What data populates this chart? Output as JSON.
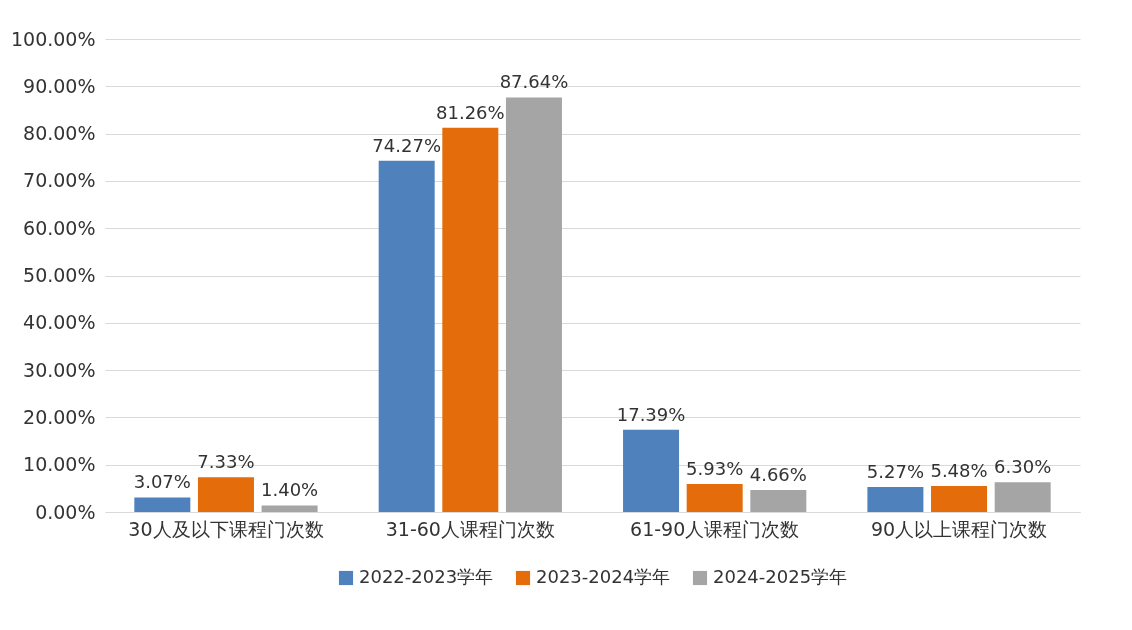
{
  "chart_data": {
    "type": "bar",
    "categories": [
      "30人及以下课程门次数",
      "31-60人课程门次数",
      "61-90人课程门次数",
      "90人以上课程门次数"
    ],
    "series": [
      {
        "name": "2022-2023学年",
        "color": "#4f81bd",
        "values": [
          3.07,
          74.27,
          17.39,
          5.27
        ],
        "value_labels": [
          "3.07%",
          "74.27%",
          "17.39%",
          "5.27%"
        ]
      },
      {
        "name": "2023-2024学年",
        "color": "#e46c0a",
        "values": [
          7.33,
          81.26,
          5.93,
          5.48
        ],
        "value_labels": [
          "7.33%",
          "81.26%",
          "5.93%",
          "5.48%"
        ]
      },
      {
        "name": "2024-2025学年",
        "color": "#a5a5a5",
        "values": [
          1.4,
          87.64,
          4.66,
          6.3
        ],
        "value_labels": [
          "1.40%",
          "87.64%",
          "4.66%",
          "6.30%"
        ]
      }
    ],
    "ylim": [
      0,
      100
    ],
    "yticks": [
      {
        "value": 0,
        "label": "0.00%"
      },
      {
        "value": 10,
        "label": "10.00%"
      },
      {
        "value": 20,
        "label": "20.00%"
      },
      {
        "value": 30,
        "label": "30.00%"
      },
      {
        "value": 40,
        "label": "40.00%"
      },
      {
        "value": 50,
        "label": "50.00%"
      },
      {
        "value": 60,
        "label": "60.00%"
      },
      {
        "value": 70,
        "label": "70.00%"
      },
      {
        "value": 80,
        "label": "80.00%"
      },
      {
        "value": 90,
        "label": "90.00%"
      },
      {
        "value": 100,
        "label": "100.00%"
      }
    ],
    "grid": "y",
    "legend": "bottom"
  }
}
